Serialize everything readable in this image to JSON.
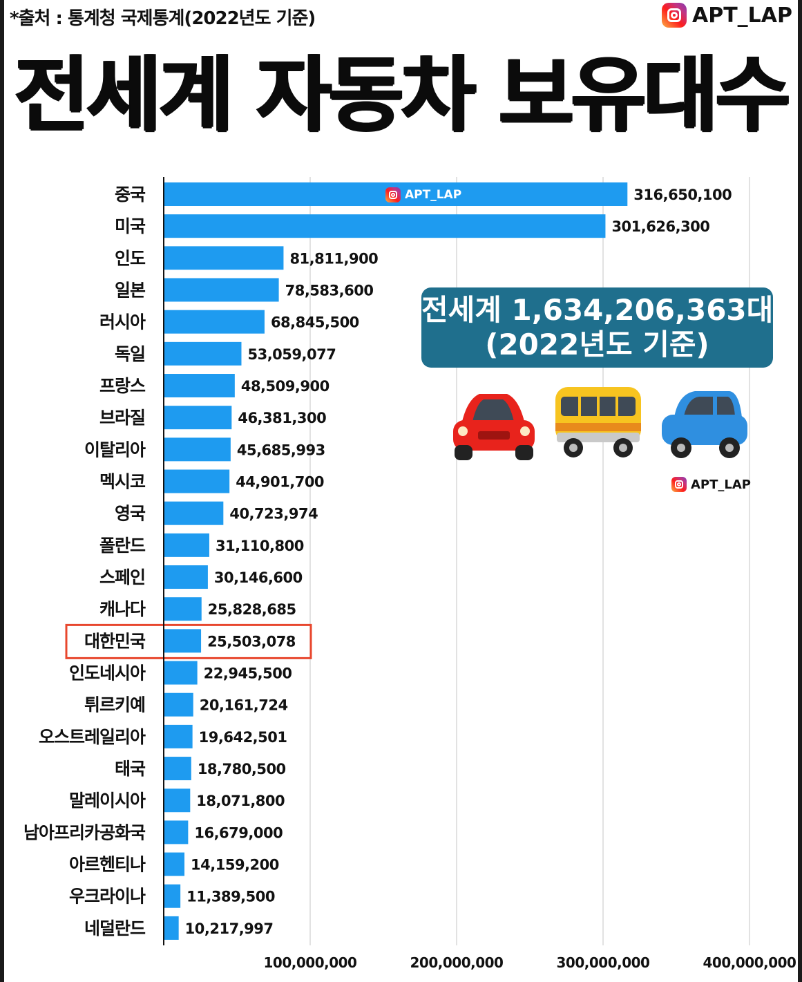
{
  "header": {
    "source": "*출처 : 통계청 국제통계(2022년도 기준)",
    "brand": "APT_LAP",
    "title": "전세계 자동차 보유대수"
  },
  "callout": {
    "line1": "전세계 1,634,206,363대",
    "line2": "(2022년도 기준)"
  },
  "watermarks": {
    "chart": "APT_LAP",
    "right": "APT_LAP"
  },
  "icons": {
    "brand": "instagram-icon",
    "vehicles": [
      "red-car-icon",
      "bus-icon",
      "blue-car-icon"
    ]
  },
  "colors": {
    "bar": "#1e9bf0",
    "highlight": "#e8472e",
    "callout": "#1f6f8d"
  },
  "chart_data": {
    "type": "bar",
    "orientation": "horizontal",
    "categories": [
      "중국",
      "미국",
      "인도",
      "일본",
      "러시아",
      "독일",
      "프랑스",
      "브라질",
      "이탈리아",
      "멕시코",
      "영국",
      "폴란드",
      "스페인",
      "캐나다",
      "대한민국",
      "인도네시아",
      "튀르키예",
      "오스트레일리아",
      "태국",
      "말레이시아",
      "남아프리카공화국",
      "아르헨티나",
      "우크라이나",
      "네덜란드"
    ],
    "values": [
      316650100,
      301626300,
      81811900,
      78583600,
      68845500,
      53059077,
      48509900,
      46381300,
      45685993,
      44901700,
      40723974,
      31110800,
      30146600,
      25828685,
      25503078,
      22945500,
      20161724,
      19642501,
      18780500,
      18071800,
      16679000,
      14159200,
      11389500,
      10217997
    ],
    "value_labels": [
      "316,650,100",
      "301,626,300",
      "81,811,900",
      "78,583,600",
      "68,845,500",
      "53,059,077",
      "48,509,900",
      "46,381,300",
      "45,685,993",
      "44,901,700",
      "40,723,974",
      "31,110,800",
      "30,146,600",
      "25,828,685",
      "25,503,078",
      "22,945,500",
      "20,161,724",
      "19,642,501",
      "18,780,500",
      "18,071,800",
      "16,679,000",
      "14,159,200",
      "11,389,500",
      "10,217,997"
    ],
    "xlim": [
      0,
      400000000
    ],
    "xticks": [
      100000000,
      200000000,
      300000000,
      400000000
    ],
    "xtick_labels": [
      "100,000,000",
      "200,000,000",
      "300,000,000",
      "400,000,000"
    ],
    "highlight": "대한민국",
    "grid": "vertical"
  }
}
